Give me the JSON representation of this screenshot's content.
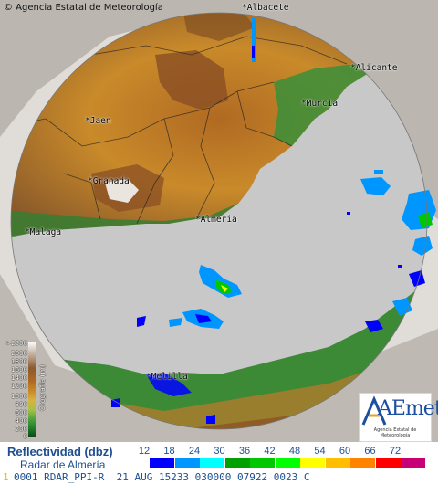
{
  "map": {
    "copyright": "© Agencia Estatal de Meteorología",
    "cities": [
      {
        "name": "Albacete",
        "key": "albacete"
      },
      {
        "name": "Alicante",
        "key": "alicante"
      },
      {
        "name": "Murcia",
        "key": "murcia"
      },
      {
        "name": "Jaen",
        "key": "jaen"
      },
      {
        "name": "Granada",
        "key": "granada"
      },
      {
        "name": "Almeria",
        "key": "almeria"
      },
      {
        "name": "Malaga",
        "key": "malaga"
      },
      {
        "name": "Melilla",
        "key": "melilla"
      }
    ],
    "colors": {
      "radar_disc_bg": "#c8c8c8",
      "outside_bg": "#ffffff",
      "lowland": "#3a8f3a",
      "midland": "#c2883a",
      "highland": "#8a4f24",
      "snow": "#f4f4f4"
    }
  },
  "orography": {
    "title": "Orografía (m)",
    "ticks": [
      ">2500",
      "2000",
      "1800",
      "1600",
      "1400",
      "1200",
      "1000",
      "800",
      "600",
      "400",
      "200",
      "0"
    ]
  },
  "logo": {
    "text": "AEmet",
    "subtitle": "Agencia Estatal de Meteorología"
  },
  "legend": {
    "title": "Reflectividad (dbz)",
    "subtitle": "Radar de Almería",
    "values": [
      "12",
      "18",
      "24",
      "30",
      "36",
      "42",
      "48",
      "54",
      "60",
      "66",
      "72"
    ],
    "colors": [
      "#0000ff",
      "#0096ff",
      "#00ffff",
      "#00a000",
      "#00c800",
      "#00ff00",
      "#ffff00",
      "#ffbe00",
      "#ff8200",
      "#ff0000",
      "#c80078"
    ]
  },
  "info": {
    "mark": "1",
    "text": "0001 RDAR_PPI-R  21 AUG 15233 030000 07922 0023 C"
  }
}
